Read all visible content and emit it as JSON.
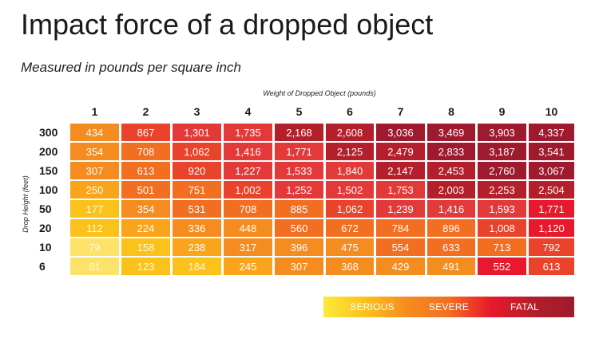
{
  "chart_data": {
    "type": "heatmap",
    "title": "Impact force of a dropped object",
    "subtitle": "Measured in pounds per square inch",
    "xlabel": "Weight of Dropped Object (pounds)",
    "ylabel": "Drop Height (feet)",
    "columns": [
      "1",
      "2",
      "3",
      "4",
      "5",
      "6",
      "7",
      "8",
      "9",
      "10"
    ],
    "rows": [
      "300",
      "200",
      "150",
      "100",
      "50",
      "20",
      "10",
      "6"
    ],
    "values": [
      [
        "434",
        "867",
        "1,301",
        "1,735",
        "2,168",
        "2,608",
        "3,036",
        "3,469",
        "3,903",
        "4,337"
      ],
      [
        "354",
        "708",
        "1,062",
        "1,416",
        "1,771",
        "2,125",
        "2,479",
        "2,833",
        "3,187",
        "3,541"
      ],
      [
        "307",
        "613",
        "920",
        "1,227",
        "1,533",
        "1,840",
        "2,147",
        "2,453",
        "2,760",
        "3,067"
      ],
      [
        "250",
        "501",
        "751",
        "1,002",
        "1,252",
        "1,502",
        "1,753",
        "2,003",
        "2,253",
        "2,504"
      ],
      [
        "177",
        "354",
        "531",
        "708",
        "885",
        "1,062",
        "1,239",
        "1,416",
        "1,593",
        "1,771"
      ],
      [
        "112",
        "224",
        "336",
        "448",
        "560",
        "672",
        "784",
        "896",
        "1,008",
        "1,120"
      ],
      [
        "79",
        "158",
        "238",
        "317",
        "396",
        "475",
        "554",
        "633",
        "713",
        "792"
      ],
      [
        "61",
        "123",
        "184",
        "245",
        "307",
        "368",
        "429",
        "491",
        "552",
        "613"
      ]
    ],
    "colors": [
      [
        "#f58c1f",
        "#e9432b",
        "#e33a39",
        "#e33a39",
        "#b31f2a",
        "#b31f2a",
        "#9e1a2e",
        "#9e1a2e",
        "#9e1a2e",
        "#9e1a2e"
      ],
      [
        "#f58c1f",
        "#f26e21",
        "#e9432b",
        "#e33a39",
        "#e33a39",
        "#b31f2a",
        "#b31f2a",
        "#9e1a2e",
        "#9e1a2e",
        "#9e1a2e"
      ],
      [
        "#f58c1f",
        "#f26e21",
        "#e9432b",
        "#e33a39",
        "#e33a39",
        "#e33a39",
        "#b31f2a",
        "#b31f2a",
        "#9e1a2e",
        "#9e1a2e"
      ],
      [
        "#f9a41b",
        "#f26e21",
        "#f26e21",
        "#e9432b",
        "#e33a39",
        "#e33a39",
        "#e33a39",
        "#b31f2a",
        "#b31f2a",
        "#b31f2a"
      ],
      [
        "#fbc21b",
        "#f58c1f",
        "#f26e21",
        "#f26e21",
        "#f26e21",
        "#e9432b",
        "#e33a39",
        "#e33a39",
        "#e33a39",
        "#e8192c"
      ],
      [
        "#fbc21b",
        "#f9a41b",
        "#f58c1f",
        "#f58c1f",
        "#f26e21",
        "#f26e21",
        "#f26e21",
        "#f26e21",
        "#e9432b",
        "#e8192c"
      ],
      [
        "#fde26a",
        "#fbc21b",
        "#f9a41b",
        "#f58c1f",
        "#f58c1f",
        "#f58c1f",
        "#f26e21",
        "#f26e21",
        "#f26e21",
        "#e9432b"
      ],
      [
        "#fde26a",
        "#fbc21b",
        "#fbc21b",
        "#f9a41b",
        "#f58c1f",
        "#f58c1f",
        "#f58c1f",
        "#f58c1f",
        "#e8192c",
        "#e9432b"
      ]
    ],
    "legend": {
      "placement": "bottom-right",
      "labels": [
        "SERIOUS",
        "SEVERE",
        "FATAL"
      ],
      "gradient": [
        "#fdea3a",
        "#fbc21b",
        "#f58c1f",
        "#f26e21",
        "#e8192c",
        "#b31f2a",
        "#9e1a2e"
      ]
    }
  }
}
